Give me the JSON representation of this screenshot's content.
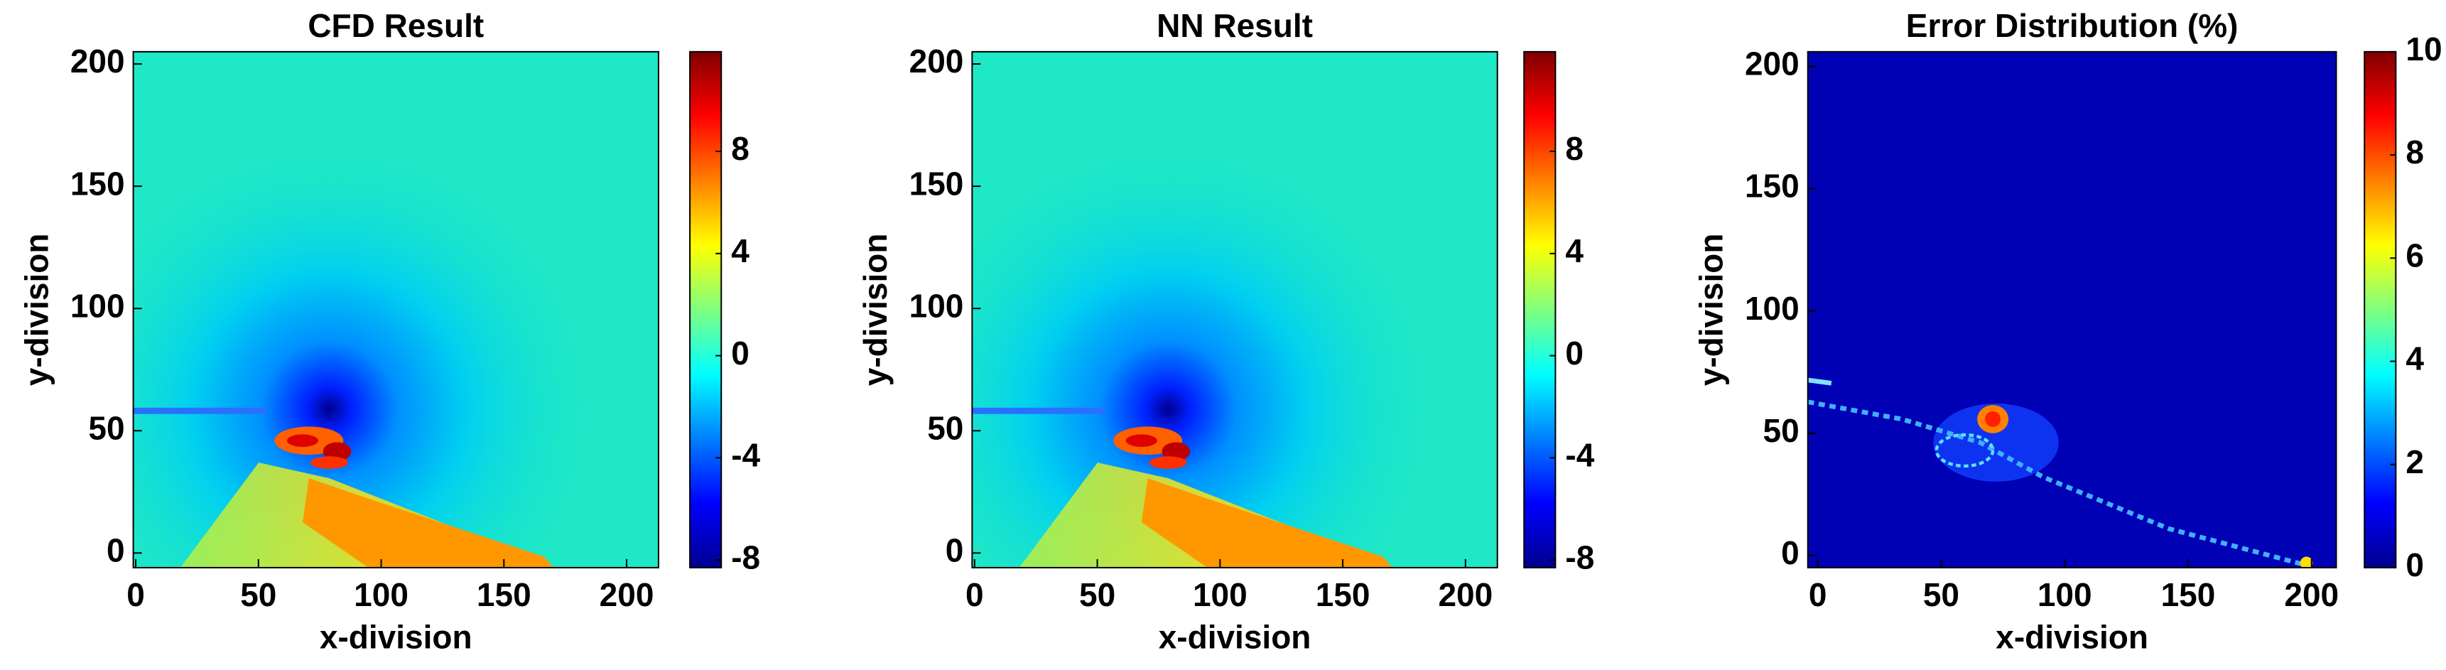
{
  "chart_data": [
    {
      "type": "heatmap",
      "title": "CFD Result",
      "xlabel": "x-division",
      "ylabel": "y-division",
      "xlim": [
        -1,
        213
      ],
      "ylim": [
        -6,
        205
      ],
      "xticks": [
        0,
        50,
        100,
        150,
        200
      ],
      "yticks": [
        0,
        50,
        100,
        150,
        200
      ],
      "colormap": "jet",
      "clim": [
        -8.3,
        11.9
      ],
      "cticks": [
        -8,
        -4,
        0,
        4,
        8
      ]
    },
    {
      "type": "heatmap",
      "title": "NN Result",
      "xlabel": "x-division",
      "ylabel": "y-division",
      "xlim": [
        -1,
        213
      ],
      "ylim": [
        -6,
        205
      ],
      "xticks": [
        0,
        50,
        100,
        150,
        200
      ],
      "yticks": [
        0,
        50,
        100,
        150,
        200
      ],
      "colormap": "jet",
      "clim": [
        -8.3,
        11.9
      ],
      "cticks": [
        -8,
        -4,
        0,
        4,
        8
      ]
    },
    {
      "type": "heatmap",
      "title": "Error Distribution (%)",
      "xlabel": "x-division",
      "ylabel": "y-division",
      "xlim": [
        -4,
        210
      ],
      "ylim": [
        -5,
        206
      ],
      "xticks": [
        0,
        50,
        100,
        150,
        200
      ],
      "yticks": [
        0,
        50,
        100,
        150,
        200
      ],
      "colormap": "jet",
      "clim": [
        0,
        10
      ],
      "cticks": [
        0,
        2,
        4,
        6,
        8,
        10
      ]
    }
  ]
}
